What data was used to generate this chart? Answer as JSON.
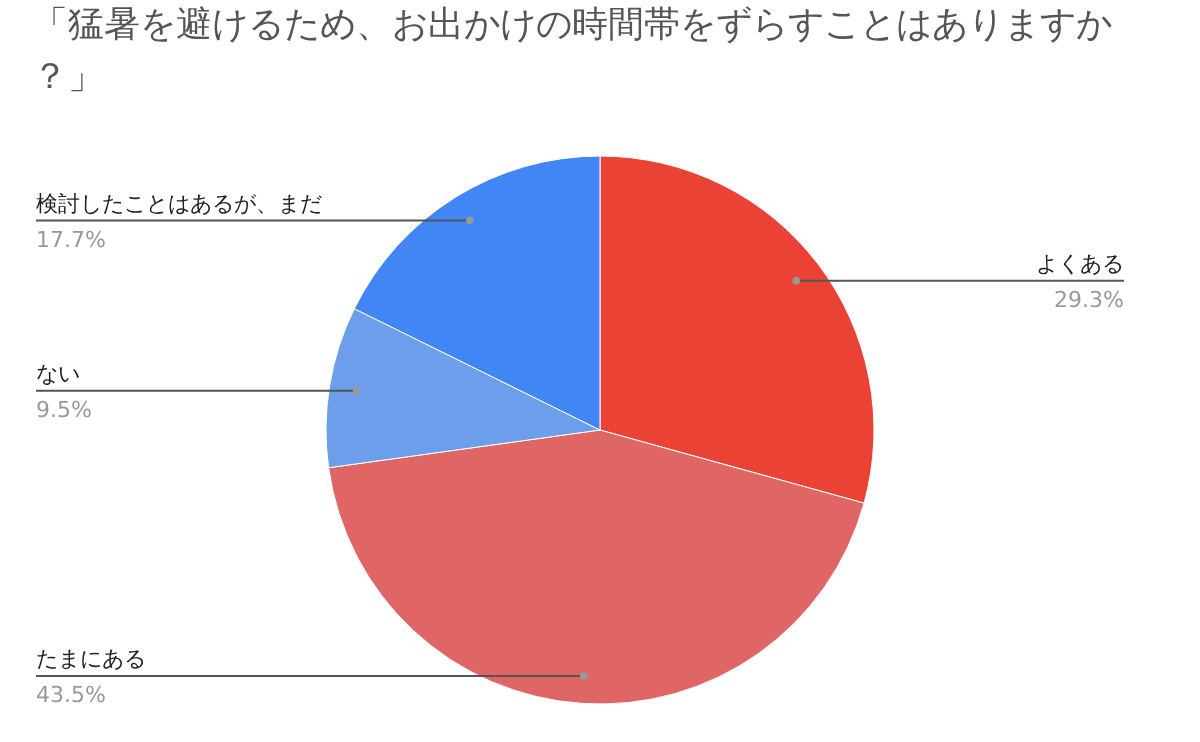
{
  "chart_data": {
    "type": "pie",
    "title": "「猛暑を避けるため、お出かけの時間帯をずらすことはありますか？」",
    "categories": [
      "よくある",
      "たまにある",
      "ない",
      "検討したことはあるが、まだ"
    ],
    "values": [
      29.3,
      43.5,
      9.5,
      17.7
    ],
    "value_labels": [
      "29.3%",
      "43.5%",
      "9.5%",
      "17.7%"
    ],
    "colors": [
      "#ea4335",
      "#e06666",
      "#6d9eeb",
      "#4285f4"
    ]
  }
}
